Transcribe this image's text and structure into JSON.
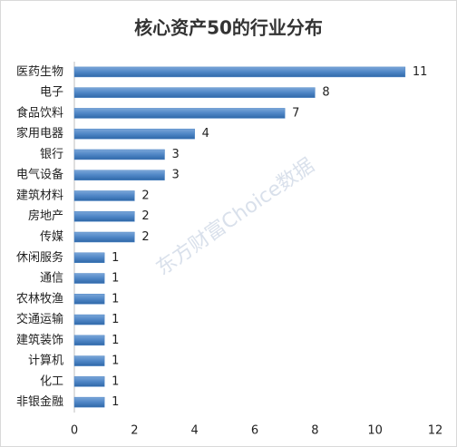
{
  "chart_data": {
    "type": "barh",
    "title": "核心资产50的行业分布",
    "watermark": "东方财富Choice数据",
    "categories": [
      "医药生物",
      "电子",
      "食品饮料",
      "家用电器",
      "银行",
      "电气设备",
      "建筑材料",
      "房地产",
      "传媒",
      "休闲服务",
      "通信",
      "农林牧渔",
      "交通运输",
      "建筑装饰",
      "计算机",
      "化工",
      "非银金融"
    ],
    "values": [
      11,
      8,
      7,
      4,
      3,
      3,
      2,
      2,
      2,
      1,
      1,
      1,
      1,
      1,
      1,
      1,
      1
    ],
    "color": "#4f86c6",
    "xlim": [
      0,
      12
    ],
    "xticks": [
      0,
      2,
      4,
      6,
      8,
      10,
      12
    ],
    "grid": false
  }
}
